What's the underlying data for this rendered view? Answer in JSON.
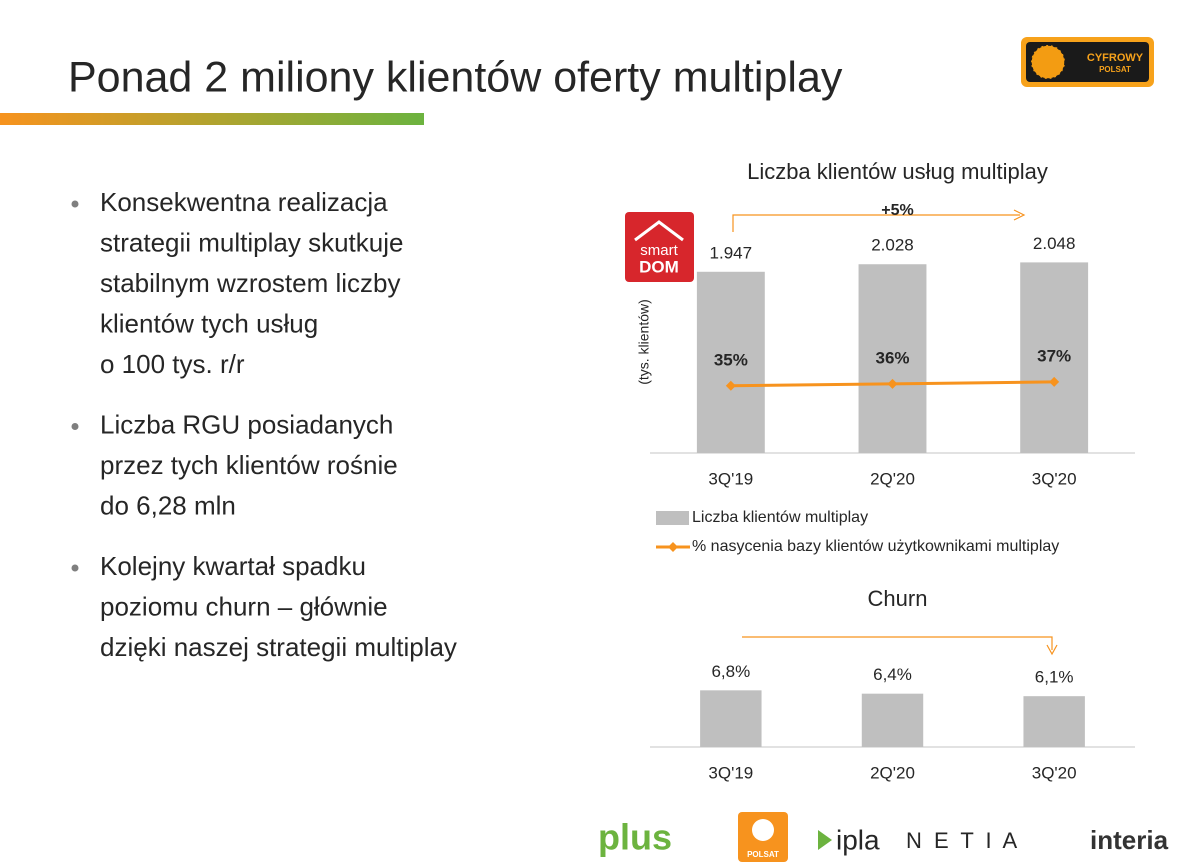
{
  "header": {
    "title": "Ponad 2 miliony klientów oferty multiplay",
    "logo": [
      "CYFROWY",
      "POLSAT"
    ]
  },
  "bullets": [
    [
      "Konsekwentna realizacja",
      "strategii multiplay skutkuje",
      "stabilnym wzrostem liczby",
      "klientów tych usług",
      "o 100 tys. r/r"
    ],
    [
      "Liczba RGU posiadanych",
      "przez tych klientów rośnie",
      "do 6,28 mln"
    ],
    [
      "Kolejny kwartał spadku",
      "poziomu churn –  głównie",
      "dzięki naszej strategii multiplay"
    ]
  ],
  "badge": [
    "smart",
    "DOM"
  ],
  "chart_data": [
    {
      "type": "bar",
      "title": "Liczba klientów usług multiplay",
      "y_label": "(tys. klientów)",
      "annotation": "+5%",
      "categories": [
        "3Q'19",
        "2Q'20",
        "3Q'20"
      ],
      "series": [
        {
          "name": "Liczba klientów multiplay",
          "color": "#bfbfbf",
          "values": [
            1947,
            2028,
            2048
          ],
          "value_labels": [
            "1.947",
            "2.028",
            "2.048"
          ]
        },
        {
          "name": "% nasycenia bazy klientów użytkownikami multiplay",
          "type": "line",
          "axis": "y2",
          "color": "#f7931e",
          "values": [
            35,
            36,
            37
          ],
          "value_labels": [
            "35%",
            "36%",
            "37%"
          ]
        }
      ],
      "ylim": [
        0,
        2600
      ],
      "y2lim": [
        0,
        126
      ],
      "legend": "bottom"
    },
    {
      "type": "bar",
      "title": "Churn",
      "categories": [
        "3Q'19",
        "2Q'20",
        "3Q'20"
      ],
      "values": [
        6.8,
        6.4,
        6.1
      ],
      "value_labels": [
        "6,8%",
        "6,4%",
        "6,1%"
      ],
      "color": "#bfbfbf",
      "ylim": [
        0,
        12
      ]
    }
  ],
  "footer_logos": [
    "plus",
    "POLSAT",
    "ipla",
    "N E T I A",
    "interia"
  ]
}
